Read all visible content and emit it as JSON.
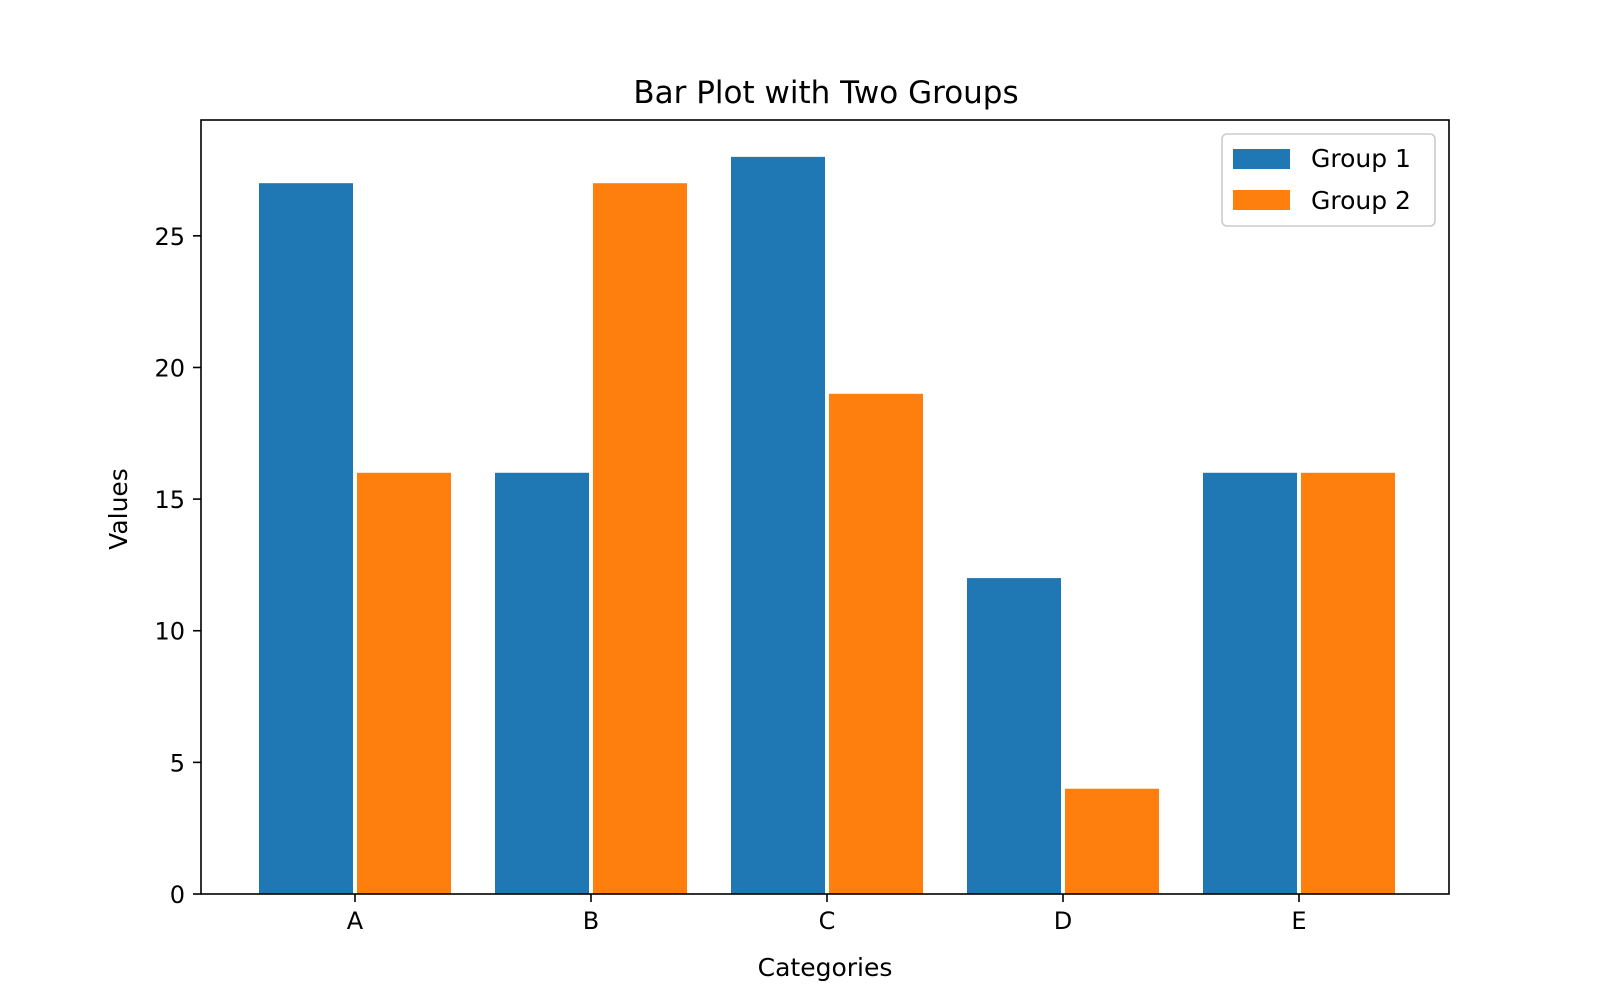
{
  "chart_data": {
    "type": "bar",
    "title": "Bar Plot with Two Groups",
    "xlabel": "Categories",
    "ylabel": "Values",
    "categories": [
      "A",
      "B",
      "C",
      "D",
      "E"
    ],
    "series": [
      {
        "name": "Group 1",
        "color": "#1f77b4",
        "values": [
          27,
          16,
          28,
          12,
          16
        ]
      },
      {
        "name": "Group 2",
        "color": "#ff7f0e",
        "values": [
          16,
          27,
          19,
          4,
          16
        ]
      }
    ],
    "ylim": [
      0,
      29.4
    ],
    "yticks": [
      0,
      5,
      10,
      15,
      20,
      25
    ],
    "ytick_labels": [
      "0",
      "5",
      "10",
      "15",
      "20",
      "25"
    ],
    "grid": false,
    "legend": "top-right"
  }
}
